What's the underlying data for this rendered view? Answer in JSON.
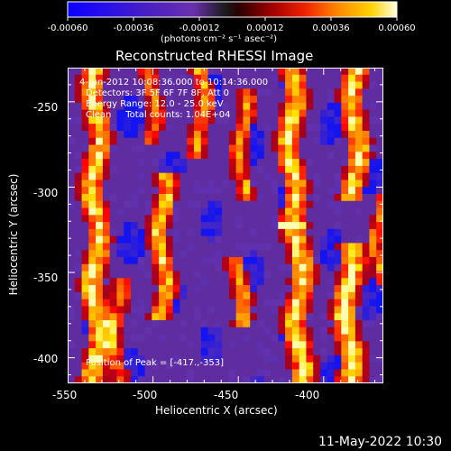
{
  "colorbar": {
    "ticks": [
      "-0.00060",
      "-0.00036",
      "-0.00012",
      "0.00012",
      "0.00036",
      "0.00060"
    ],
    "units_label": "(photons cm⁻² s⁻¹ asec⁻²)"
  },
  "image": {
    "title": "Reconstructed RHESSI Image",
    "info_lines": [
      "4-Jun-2012 10:08:36.000 to 10:14:36.000",
      "Detectors: 3F 5F 6F 7F 8F, Att 0",
      "Energy Range: 12.0 - 25.0 keV",
      "Clean     Total counts: 1.04E+04"
    ],
    "peak_label": "Position of Peak = [-417.,-353]",
    "xlabel": "Heliocentric X (arcsec)",
    "ylabel": "Heliocentric Y (arcsec)",
    "x_ticks": [
      -550,
      -500,
      -450,
      -400
    ],
    "y_ticks": [
      -250,
      -300,
      -350,
      -400
    ],
    "x_range": [
      -550,
      -365
    ],
    "y_range": [
      -415,
      -230
    ]
  },
  "footer": {
    "date": "11-May-2022 10:30"
  }
}
